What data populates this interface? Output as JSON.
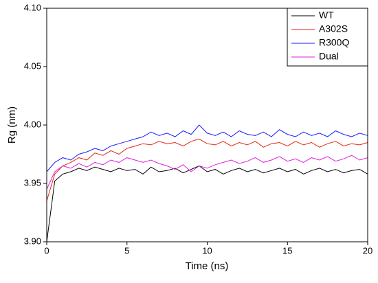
{
  "chart_data": {
    "type": "line",
    "xlabel": "Time (ns)",
    "ylabel": "Rg (nm)",
    "x": [
      0,
      0.5,
      1,
      1.5,
      2,
      2.5,
      3,
      3.5,
      4,
      4.5,
      5,
      5.5,
      6,
      6.5,
      7,
      7.5,
      8,
      8.5,
      9,
      9.5,
      10,
      10.5,
      11,
      11.5,
      12,
      12.5,
      13,
      13.5,
      14,
      14.5,
      15,
      15.5,
      16,
      16.5,
      17,
      17.5,
      18,
      18.5,
      19,
      19.5,
      20
    ],
    "series": [
      {
        "name": "WT",
        "color": "#000000",
        "values": [
          3.9,
          3.952,
          3.958,
          3.96,
          3.963,
          3.961,
          3.964,
          3.962,
          3.96,
          3.963,
          3.961,
          3.962,
          3.958,
          3.964,
          3.96,
          3.961,
          3.963,
          3.959,
          3.962,
          3.965,
          3.96,
          3.962,
          3.958,
          3.961,
          3.963,
          3.96,
          3.962,
          3.959,
          3.961,
          3.963,
          3.96,
          3.962,
          3.958,
          3.961,
          3.963,
          3.96,
          3.962,
          3.959,
          3.961,
          3.962,
          3.958
        ]
      },
      {
        "name": "A302S",
        "color": "#e8230f",
        "values": [
          3.935,
          3.958,
          3.965,
          3.968,
          3.972,
          3.97,
          3.976,
          3.974,
          3.978,
          3.975,
          3.98,
          3.982,
          3.984,
          3.983,
          3.986,
          3.984,
          3.985,
          3.982,
          3.986,
          3.988,
          3.984,
          3.983,
          3.986,
          3.982,
          3.985,
          3.983,
          3.986,
          3.981,
          3.984,
          3.985,
          3.982,
          3.986,
          3.983,
          3.985,
          3.981,
          3.984,
          3.986,
          3.982,
          3.984,
          3.983,
          3.985
        ]
      },
      {
        "name": "R300Q",
        "color": "#1a1aff",
        "values": [
          3.96,
          3.968,
          3.972,
          3.97,
          3.975,
          3.977,
          3.98,
          3.978,
          3.982,
          3.984,
          3.986,
          3.988,
          3.99,
          3.994,
          3.991,
          3.993,
          3.99,
          3.995,
          3.992,
          4.0,
          3.993,
          3.991,
          3.994,
          3.99,
          3.995,
          3.992,
          3.991,
          3.994,
          3.99,
          3.996,
          3.992,
          3.99,
          3.994,
          3.991,
          3.993,
          3.99,
          3.995,
          3.992,
          3.99,
          3.993,
          3.991
        ]
      },
      {
        "name": "Dual",
        "color": "#e01ee0",
        "values": [
          3.945,
          3.96,
          3.965,
          3.963,
          3.967,
          3.964,
          3.968,
          3.966,
          3.97,
          3.968,
          3.972,
          3.97,
          3.968,
          3.97,
          3.967,
          3.965,
          3.962,
          3.966,
          3.96,
          3.965,
          3.963,
          3.966,
          3.968,
          3.97,
          3.967,
          3.969,
          3.972,
          3.968,
          3.97,
          3.973,
          3.969,
          3.971,
          3.968,
          3.972,
          3.97,
          3.973,
          3.969,
          3.971,
          3.974,
          3.97,
          3.972
        ]
      }
    ],
    "xlim": [
      0,
      20
    ],
    "xticks": [
      0,
      5,
      10,
      15,
      20
    ],
    "ylim": [
      3.9,
      4.1
    ],
    "yticks": [
      {
        "value": 3.9,
        "label": "3.90"
      },
      3.95,
      {
        "value": 4.0,
        "label": "4.00"
      },
      4.05,
      {
        "value": 4.1,
        "label": "4.10"
      }
    ],
    "legend": "upper right"
  }
}
